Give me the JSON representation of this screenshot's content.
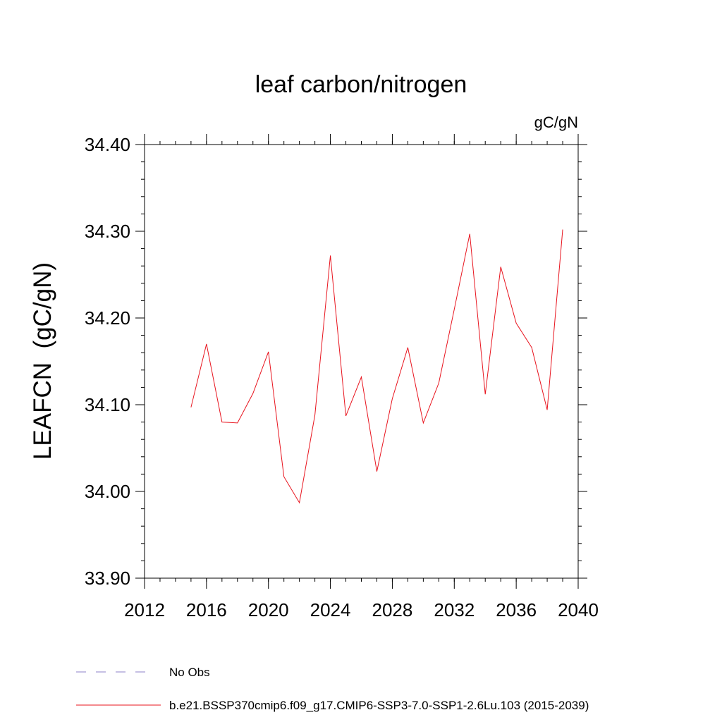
{
  "chart_data": {
    "type": "line",
    "title": "leaf carbon/nitrogen",
    "units_label": "gC/gN",
    "ylabel": "LEAFCN  (gC/gN)",
    "xlabel": "",
    "xlim": [
      2012,
      2040
    ],
    "ylim": [
      33.9,
      34.4
    ],
    "xticks": [
      2012,
      2016,
      2020,
      2024,
      2028,
      2032,
      2036,
      2040
    ],
    "xtick_labels": [
      "2012",
      "2016",
      "2020",
      "2024",
      "2028",
      "2032",
      "2036",
      "2040"
    ],
    "yticks": [
      33.9,
      34.0,
      34.1,
      34.2,
      34.3,
      34.4
    ],
    "ytick_labels": [
      "33.90",
      "34.00",
      "34.10",
      "34.20",
      "34.30",
      "34.40"
    ],
    "grid": false,
    "legend_position": "bottom",
    "series": [
      {
        "name": "b.e21.BSSP370cmip6.f09_g17.CMIP6-SSP3-7.0-SSP1-2.6Lu.103 (2015-2039)",
        "color": "#e8141e",
        "style": "solid",
        "x": [
          2015,
          2016,
          2017,
          2018,
          2019,
          2020,
          2021,
          2022,
          2023,
          2024,
          2025,
          2026,
          2027,
          2028,
          2029,
          2030,
          2031,
          2032,
          2033,
          2034,
          2035,
          2036,
          2037,
          2038,
          2039
        ],
        "y": [
          34.097,
          34.17,
          34.08,
          34.079,
          34.113,
          34.161,
          34.017,
          33.987,
          34.088,
          34.272,
          34.087,
          34.132,
          34.023,
          34.107,
          34.166,
          34.079,
          34.125,
          34.21,
          34.297,
          34.112,
          34.259,
          34.194,
          34.166,
          34.094,
          34.302
        ]
      }
    ],
    "legend": [
      {
        "label": "No Obs",
        "color": "#8c82c8",
        "style": "dashed"
      },
      {
        "label": "b.e21.BSSP370cmip6.f09_g17.CMIP6-SSP3-7.0-SSP1-2.6Lu.103 (2015-2039)",
        "color": "#e8141e",
        "style": "solid"
      }
    ]
  }
}
